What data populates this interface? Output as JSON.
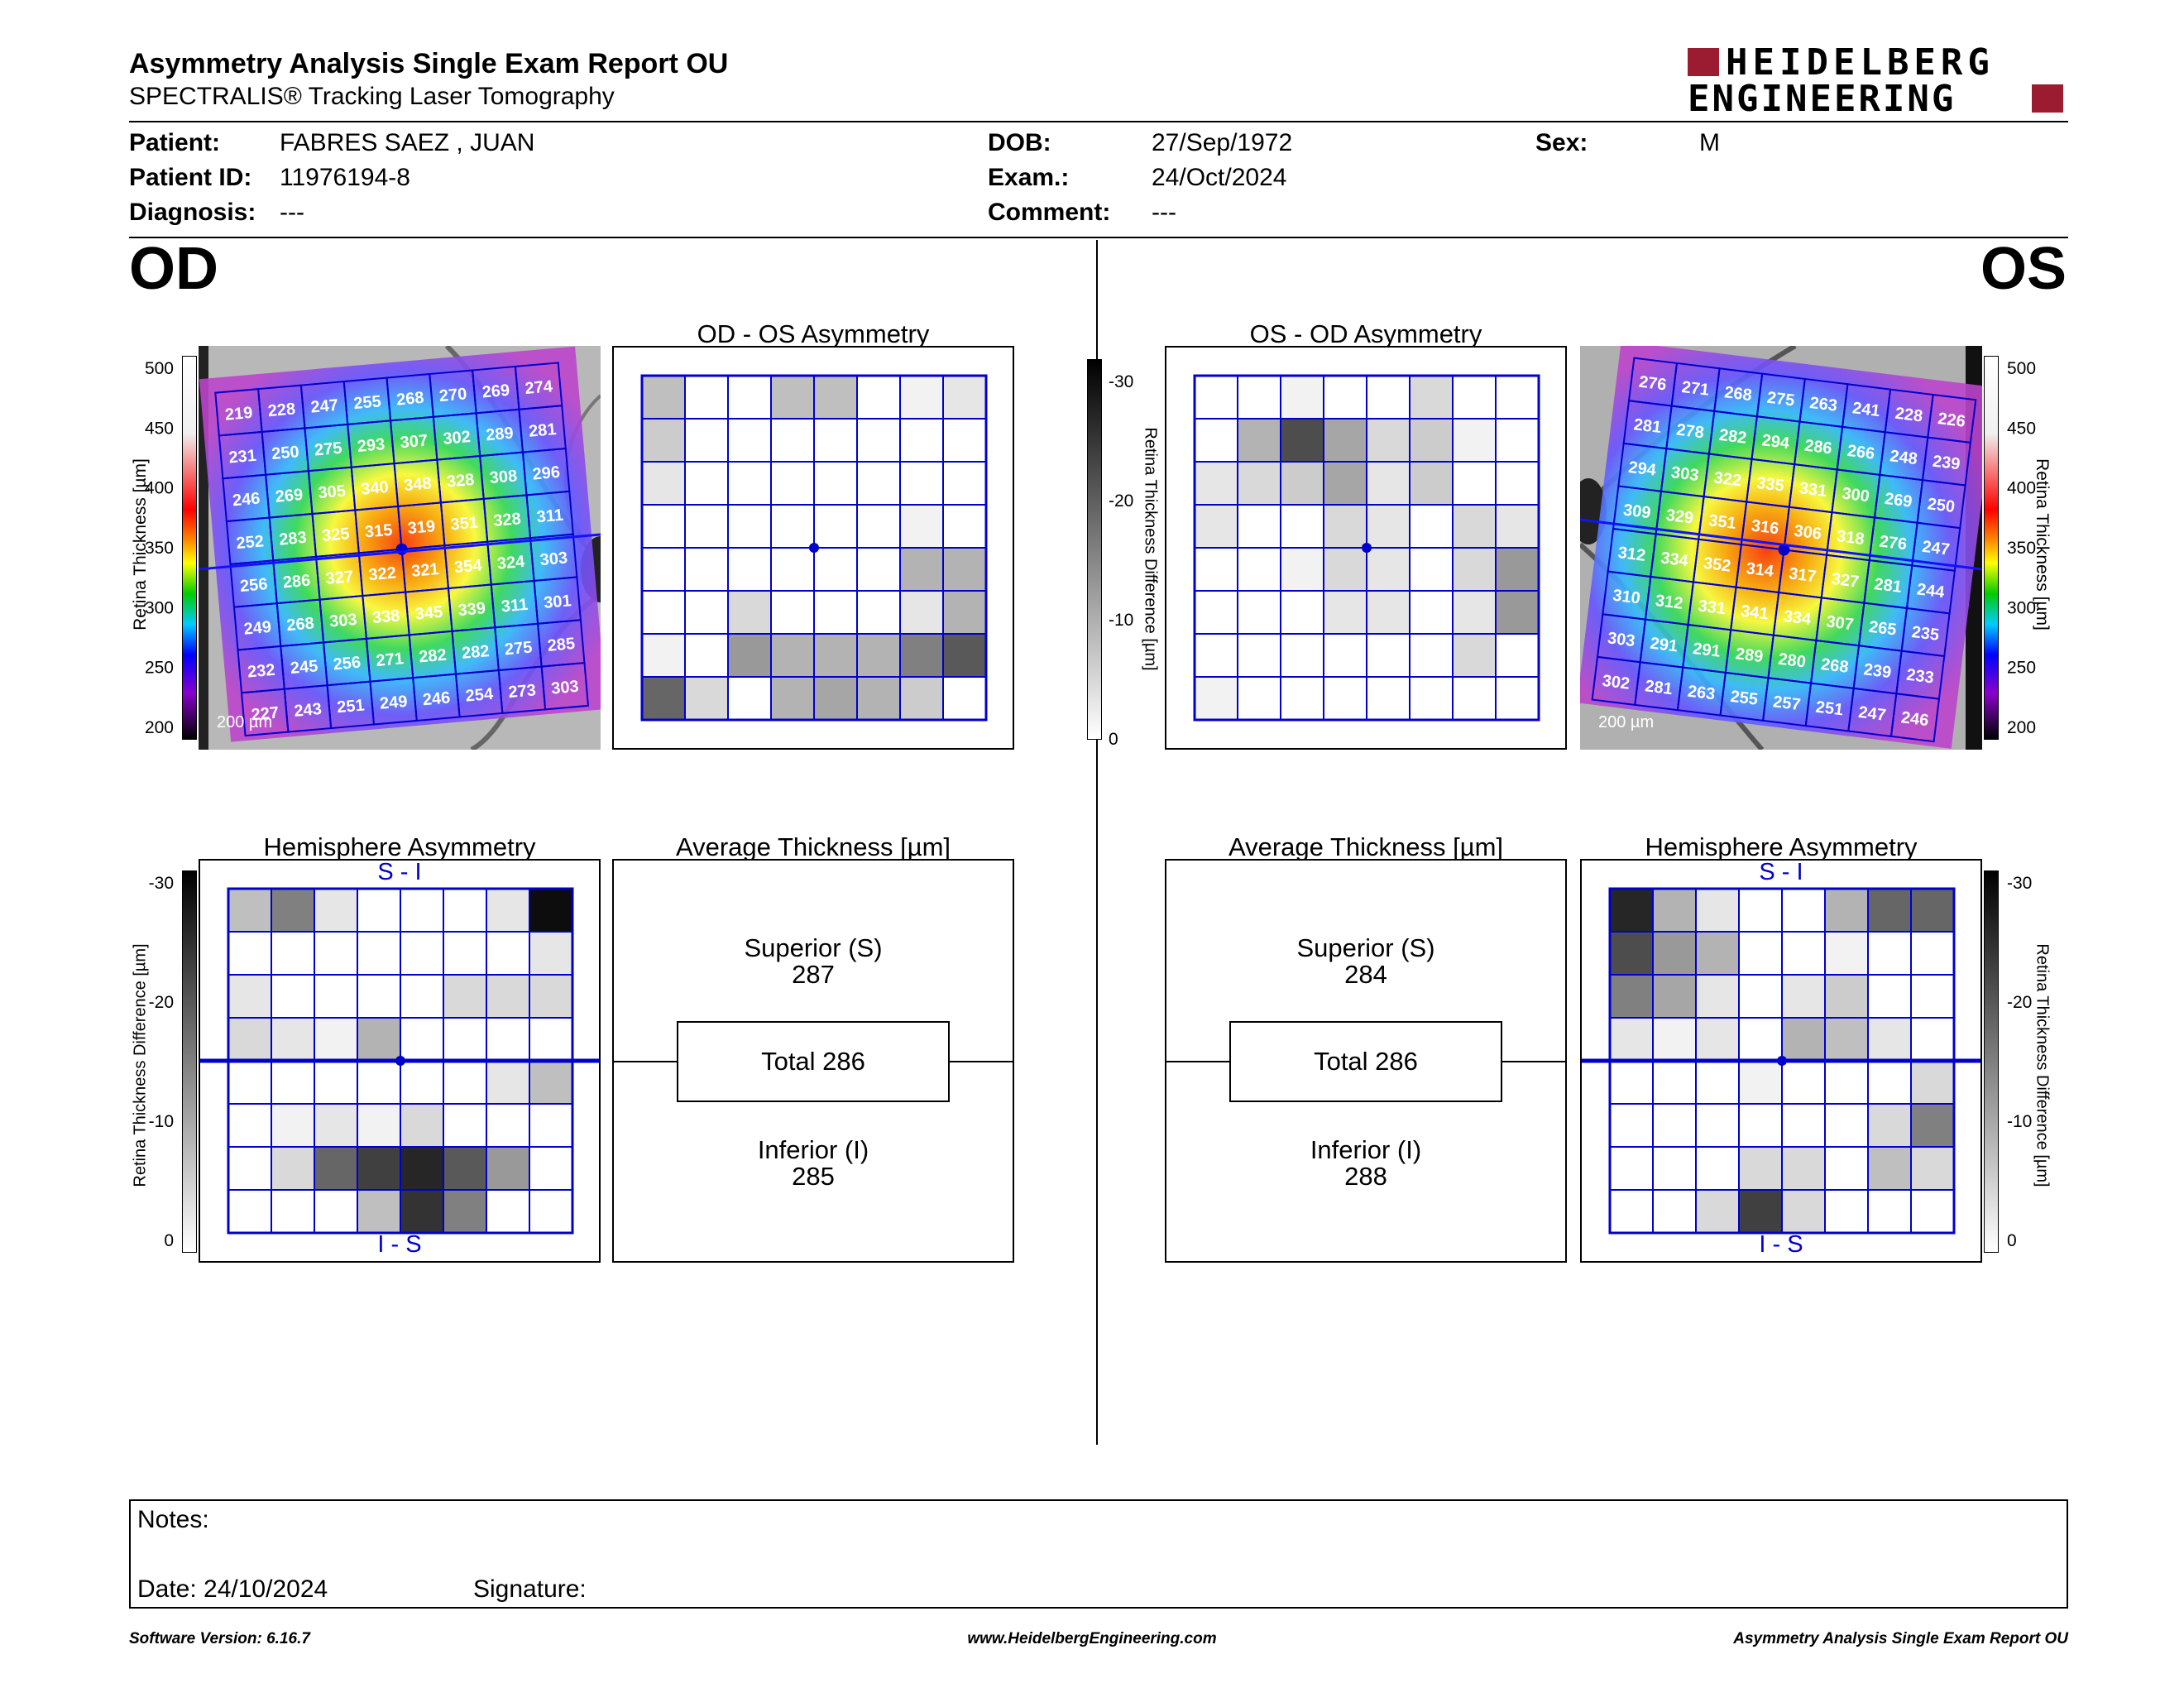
{
  "header": {
    "title": "Asymmetry Analysis Single Exam Report OU",
    "subtitle": "SPECTRALIS® Tracking Laser Tomography",
    "logo_line1": "HEIDELBERG",
    "logo_line2": "ENGINEERING"
  },
  "patient": {
    "patient_label": "Patient:",
    "patient_value": "FABRES SAEZ , JUAN",
    "id_label": "Patient ID:",
    "id_value": "11976194-8",
    "diagnosis_label": "Diagnosis:",
    "diagnosis_value": "---",
    "dob_label": "DOB:",
    "dob_value": "27/Sep/1972",
    "exam_label": "Exam.:",
    "exam_value": "24/Oct/2024",
    "comment_label": "Comment:",
    "comment_value": "---",
    "sex_label": "Sex:",
    "sex_value": "M"
  },
  "od": {
    "eye": "OD",
    "asym_title": "OD - OS Asymmetry",
    "hemi_title": "Hemisphere Asymmetry",
    "avg_title": "Average Thickness [µm]",
    "superior_label": "Superior (S)",
    "superior_value": "287",
    "total_label": "Total 286",
    "inferior_label": "Inferior (I)",
    "inferior_value": "285",
    "scale_label": "200 µm",
    "thickness_grid": [
      [
        "219",
        "228",
        "247",
        "255",
        "268",
        "270",
        "269",
        "274"
      ],
      [
        "231",
        "250",
        "275",
        "293",
        "307",
        "302",
        "289",
        "281"
      ],
      [
        "246",
        "269",
        "305",
        "340",
        "348",
        "328",
        "308",
        "296"
      ],
      [
        "252",
        "283",
        "325",
        "315",
        "319",
        "351",
        "328",
        "311"
      ],
      [
        "256",
        "286",
        "327",
        "322",
        "321",
        "354",
        "324",
        "303"
      ],
      [
        "249",
        "268",
        "303",
        "338",
        "345",
        "339",
        "311",
        "301"
      ],
      [
        "232",
        "245",
        "256",
        "271",
        "282",
        "282",
        "275",
        "285"
      ],
      [
        "227",
        "243",
        "251",
        "249",
        "246",
        "254",
        "273",
        "303"
      ]
    ],
    "asym_grid": [
      [
        0.25,
        0,
        0,
        0.25,
        0.25,
        0,
        0.05,
        0.1
      ],
      [
        0.2,
        0,
        0,
        0,
        0,
        0,
        0,
        0
      ],
      [
        0.1,
        0,
        0,
        0,
        0,
        0,
        0,
        0
      ],
      [
        0,
        0,
        0,
        0,
        0,
        0,
        0.05,
        0
      ],
      [
        0,
        0,
        0,
        0,
        0,
        0,
        0.3,
        0.3
      ],
      [
        0,
        0,
        0.15,
        0,
        0,
        0,
        0.1,
        0.3
      ],
      [
        0.05,
        0,
        0.4,
        0.3,
        0.3,
        0.3,
        0.5,
        0.65
      ],
      [
        0.6,
        0.15,
        0,
        0.3,
        0.35,
        0.3,
        0.2,
        0
      ]
    ],
    "hemi_grid": [
      [
        0.25,
        0.5,
        0.1,
        0,
        0,
        0,
        0.1,
        0.95
      ],
      [
        0,
        0,
        0,
        0,
        0,
        0,
        0,
        0.1
      ],
      [
        0.1,
        0,
        0,
        0,
        0,
        0.15,
        0.15,
        0.15
      ],
      [
        0.15,
        0.1,
        0.05,
        0.3,
        0,
        0,
        0,
        0
      ],
      [
        0,
        0,
        0,
        0,
        0,
        0,
        0.1,
        0.25
      ],
      [
        0,
        0.05,
        0.1,
        0.05,
        0.15,
        0,
        0,
        0
      ],
      [
        0,
        0.15,
        0.6,
        0.75,
        0.85,
        0.65,
        0.4,
        0
      ],
      [
        0,
        0,
        0,
        0.25,
        0.8,
        0.5,
        0,
        0
      ]
    ],
    "hemi_top_label": "S - I",
    "hemi_bottom_label": "I - S"
  },
  "os": {
    "eye": "OS",
    "asym_title": "OS - OD Asymmetry",
    "hemi_title": "Hemisphere Asymmetry",
    "avg_title": "Average Thickness [µm]",
    "superior_label": "Superior (S)",
    "superior_value": "284",
    "total_label": "Total 286",
    "inferior_label": "Inferior (I)",
    "inferior_value": "288",
    "scale_label": "200 µm",
    "thickness_grid": [
      [
        "276",
        "271",
        "268",
        "275",
        "263",
        "241",
        "228",
        "226"
      ],
      [
        "281",
        "278",
        "282",
        "294",
        "286",
        "266",
        "248",
        "239"
      ],
      [
        "294",
        "303",
        "322",
        "335",
        "331",
        "300",
        "269",
        "250"
      ],
      [
        "309",
        "329",
        "351",
        "316",
        "306",
        "318",
        "276",
        "247"
      ],
      [
        "312",
        "334",
        "352",
        "314",
        "317",
        "327",
        "281",
        "244"
      ],
      [
        "310",
        "312",
        "331",
        "341",
        "334",
        "307",
        "265",
        "235"
      ],
      [
        "303",
        "291",
        "291",
        "289",
        "280",
        "268",
        "239",
        "233"
      ],
      [
        "302",
        "281",
        "263",
        "255",
        "257",
        "251",
        "247",
        "246"
      ]
    ],
    "asym_grid": [
      [
        0,
        0,
        0.05,
        0,
        0,
        0.15,
        0,
        0
      ],
      [
        0,
        0.3,
        0.7,
        0.35,
        0.15,
        0.2,
        0.05,
        0
      ],
      [
        0.1,
        0.15,
        0.2,
        0.35,
        0.1,
        0.2,
        0,
        0
      ],
      [
        0.1,
        0,
        0,
        0.15,
        0.1,
        0,
        0.15,
        0.1
      ],
      [
        0,
        0,
        0.05,
        0.15,
        0.1,
        0,
        0.15,
        0.4
      ],
      [
        0,
        0,
        0,
        0.1,
        0.1,
        0,
        0.1,
        0.4
      ],
      [
        0,
        0,
        0,
        0,
        0,
        0,
        0.15,
        0
      ],
      [
        0.05,
        0,
        0,
        0,
        0,
        0,
        0,
        0
      ]
    ],
    "hemi_grid": [
      [
        0.85,
        0.3,
        0.1,
        0,
        0,
        0.3,
        0.6,
        0.6
      ],
      [
        0.7,
        0.4,
        0.3,
        0,
        0,
        0.05,
        0,
        0
      ],
      [
        0.5,
        0.35,
        0.1,
        0,
        0.1,
        0.2,
        0,
        0
      ],
      [
        0.1,
        0.05,
        0.1,
        0,
        0.3,
        0.25,
        0.1,
        0
      ],
      [
        0,
        0,
        0,
        0.05,
        0,
        0,
        0,
        0.15
      ],
      [
        0,
        0,
        0,
        0,
        0,
        0,
        0.15,
        0.5
      ],
      [
        0,
        0,
        0,
        0.15,
        0.15,
        0,
        0.25,
        0.15
      ],
      [
        0,
        0,
        0.15,
        0.75,
        0.15,
        0,
        0,
        0
      ]
    ],
    "hemi_top_label": "S - I",
    "hemi_bottom_label": "I - S"
  },
  "thickness_scale": {
    "axis_label": "Retina Thickness [µm]",
    "ticks": [
      "500",
      "450",
      "400",
      "350",
      "300",
      "250",
      "200"
    ]
  },
  "difference_scale": {
    "axis_label": "Retina Thickness Difference [µm]",
    "ticks": [
      "-30",
      "-20",
      "-10",
      "0"
    ]
  },
  "notes": {
    "notes_label": "Notes:",
    "date_label": "Date: 24/10/2024",
    "signature_label": "Signature:"
  },
  "footer": {
    "software": "Software Version: 6.16.7",
    "website": "www.HeidelbergEngineering.com",
    "report_name": "Asymmetry Analysis Single Exam Report OU"
  },
  "colors": {
    "grid_blue": "#0000cc",
    "logo_red": "#9b1b30"
  }
}
